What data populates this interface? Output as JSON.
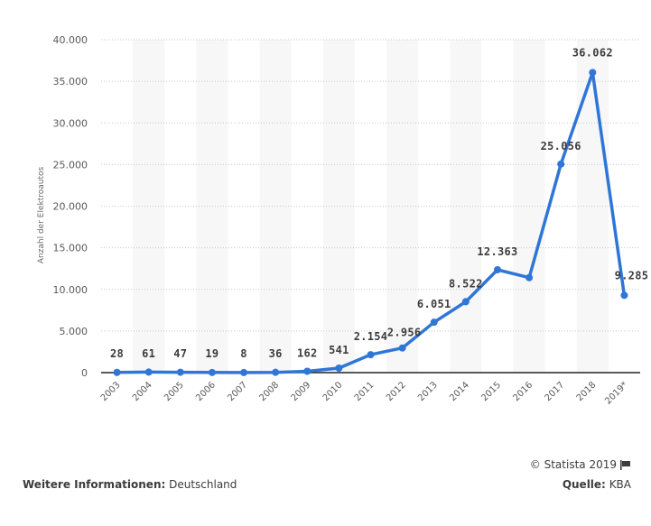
{
  "chart_data": {
    "type": "line",
    "title": "",
    "xlabel": "",
    "ylabel": "Anzahl der Elektroautos",
    "ylim": [
      0,
      40000
    ],
    "yticks": [
      0,
      5000,
      10000,
      15000,
      20000,
      25000,
      30000,
      35000,
      40000
    ],
    "ytick_labels": [
      "0",
      "5.000",
      "10.000",
      "15.000",
      "20.000",
      "25.000",
      "30.000",
      "35.000",
      "40.000"
    ],
    "categories": [
      "2003",
      "2004",
      "2005",
      "2006",
      "2007",
      "2008",
      "2009",
      "2010",
      "2011",
      "2012",
      "2013",
      "2014",
      "2015",
      "2016",
      "2017",
      "2018",
      "2019*"
    ],
    "series": [
      {
        "name": "Anzahl der Elektroautos",
        "color": "#2f76d6",
        "values": [
          28,
          61,
          47,
          19,
          8,
          36,
          162,
          541,
          2154,
          2956,
          6051,
          8522,
          12363,
          11410,
          25056,
          36062,
          9285
        ],
        "labels": [
          "28",
          "61",
          "47",
          "19",
          "8",
          "36",
          "162",
          "541",
          "2.154",
          "2.956",
          "6.051",
          "8.522",
          "12.363",
          "",
          "25.056",
          "36.062",
          "9.285"
        ]
      }
    ],
    "grid": true,
    "grid_style": "dotted horizontal",
    "alternating_column_shading": true,
    "legend": "none"
  },
  "footer": {
    "info_label": "Weitere Informationen:",
    "info_value": "Deutschland",
    "copyright": "© Statista 2019",
    "source_label": "Quelle:",
    "source_value": "KBA",
    "flag_icon": "flag-icon"
  },
  "colors": {
    "line": "#2f76d6",
    "grid": "#c8c8c8",
    "band": "#f7f7f7",
    "axis": "#222222",
    "text": "#3c3c3c"
  }
}
